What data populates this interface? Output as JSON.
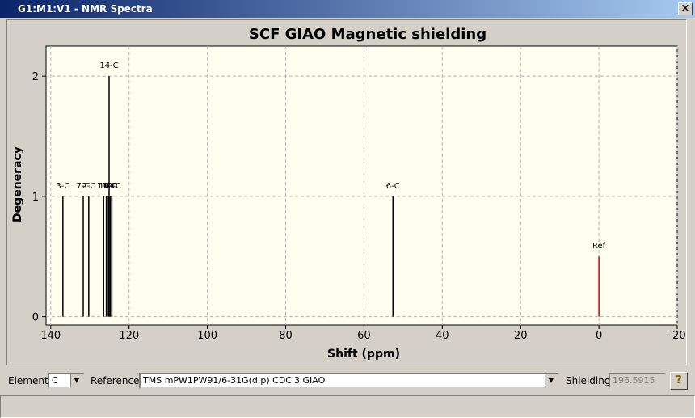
{
  "window": {
    "title": "G1:M1:V1 - NMR Spectra",
    "close": "×"
  },
  "chart_data": {
    "type": "stick",
    "title": "SCF GIAO Magnetic shielding",
    "x_label": "Shift (ppm)",
    "y_label": "Degeneracy",
    "labels": [
      "3-C",
      "7-C",
      "2-C",
      "1-C",
      "11-C",
      "10-C",
      "14-C",
      "9-C",
      "12-C",
      "6-C",
      "Ref"
    ],
    "x": [
      136.9,
      131.7,
      130.3,
      126.5,
      125.8,
      125.3,
      125.1,
      124.8,
      124.4,
      52.6,
      0
    ],
    "values": [
      1,
      1,
      1,
      1,
      1,
      1,
      2,
      1,
      1,
      1,
      0.5
    ],
    "colors": [
      "#000000",
      "#000000",
      "#000000",
      "#000000",
      "#000000",
      "#000000",
      "#000000",
      "#000000",
      "#000000",
      "#000000",
      "#cc0000"
    ],
    "xlim": [
      141.2,
      -20
    ],
    "xticks": [
      140,
      120,
      100,
      80,
      60,
      40,
      20,
      0,
      -20
    ],
    "ylim": [
      -0.07,
      2.25
    ],
    "yticks": [
      0,
      1,
      2
    ],
    "grid": true
  },
  "toolbar": {
    "element_label": "Element:",
    "element": "C",
    "reference_label": "Reference:",
    "reference": "TMS mPW1PW91/6-31G(d,p) CDCl3 GIAO",
    "shielding_label": "Shielding:",
    "shielding": "196.5915",
    "help": "?"
  }
}
